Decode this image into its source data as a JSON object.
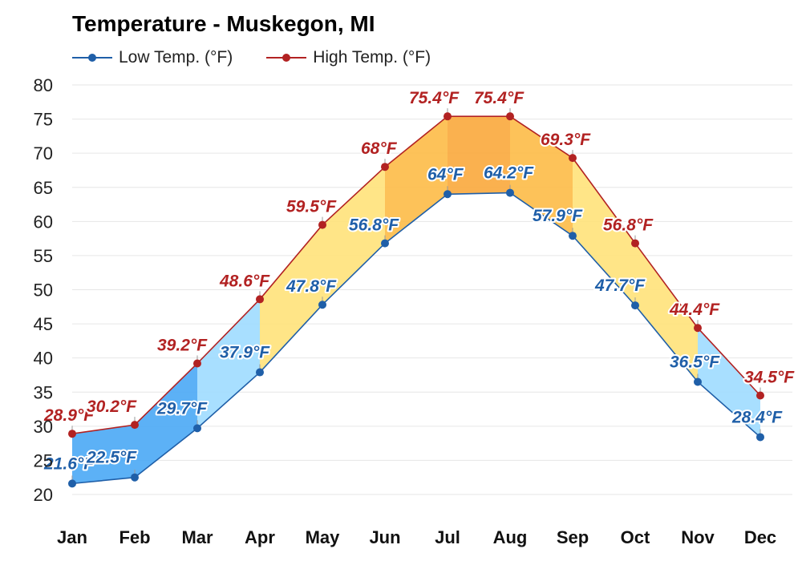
{
  "chart_data": {
    "type": "area",
    "title": "Temperature - Muskegon, MI",
    "xlabel": "",
    "ylabel": "",
    "categories": [
      "Jan",
      "Feb",
      "Mar",
      "Apr",
      "May",
      "Jun",
      "Jul",
      "Aug",
      "Sep",
      "Oct",
      "Nov",
      "Dec"
    ],
    "ylim": [
      20,
      80
    ],
    "yticks": [
      "20",
      "25",
      "30",
      "35",
      "40",
      "45",
      "50",
      "55",
      "60",
      "65",
      "70",
      "75",
      "80"
    ],
    "grid": true,
    "legend_position": "top-left",
    "series": [
      {
        "name": "Low Temp. (°F)",
        "values": [
          21.6,
          22.5,
          29.7,
          37.9,
          47.8,
          56.8,
          64,
          64.2,
          57.9,
          47.7,
          36.5,
          28.4
        ],
        "labels": [
          "21.6°F",
          "22.5°F",
          "29.7°F",
          "37.9°F",
          "47.8°F",
          "56.8°F",
          "64°F",
          "64.2°F",
          "57.9°F",
          "47.7°F",
          "36.5°F",
          "28.4°F"
        ],
        "color": "#1f5fa8"
      },
      {
        "name": "High Temp. (°F)",
        "values": [
          28.9,
          30.2,
          39.2,
          48.6,
          59.5,
          68,
          75.4,
          75.4,
          69.3,
          56.8,
          44.4,
          34.5
        ],
        "labels": [
          "28.9°F",
          "30.2°F",
          "39.2°F",
          "48.6°F",
          "59.5°F",
          "68°F",
          "75.4°F",
          "75.4°F",
          "69.3°F",
          "56.8°F",
          "44.4°F",
          "34.5°F"
        ],
        "color": "#b22222"
      }
    ],
    "band_colors": {
      "cold_dark": "#4aa8f5",
      "cold_light": "#9fdcff",
      "mild": "#ffe27a",
      "warm": "#fdbb47",
      "hot": "#f9a83c"
    },
    "gridline_color": "#e6e6e6"
  }
}
